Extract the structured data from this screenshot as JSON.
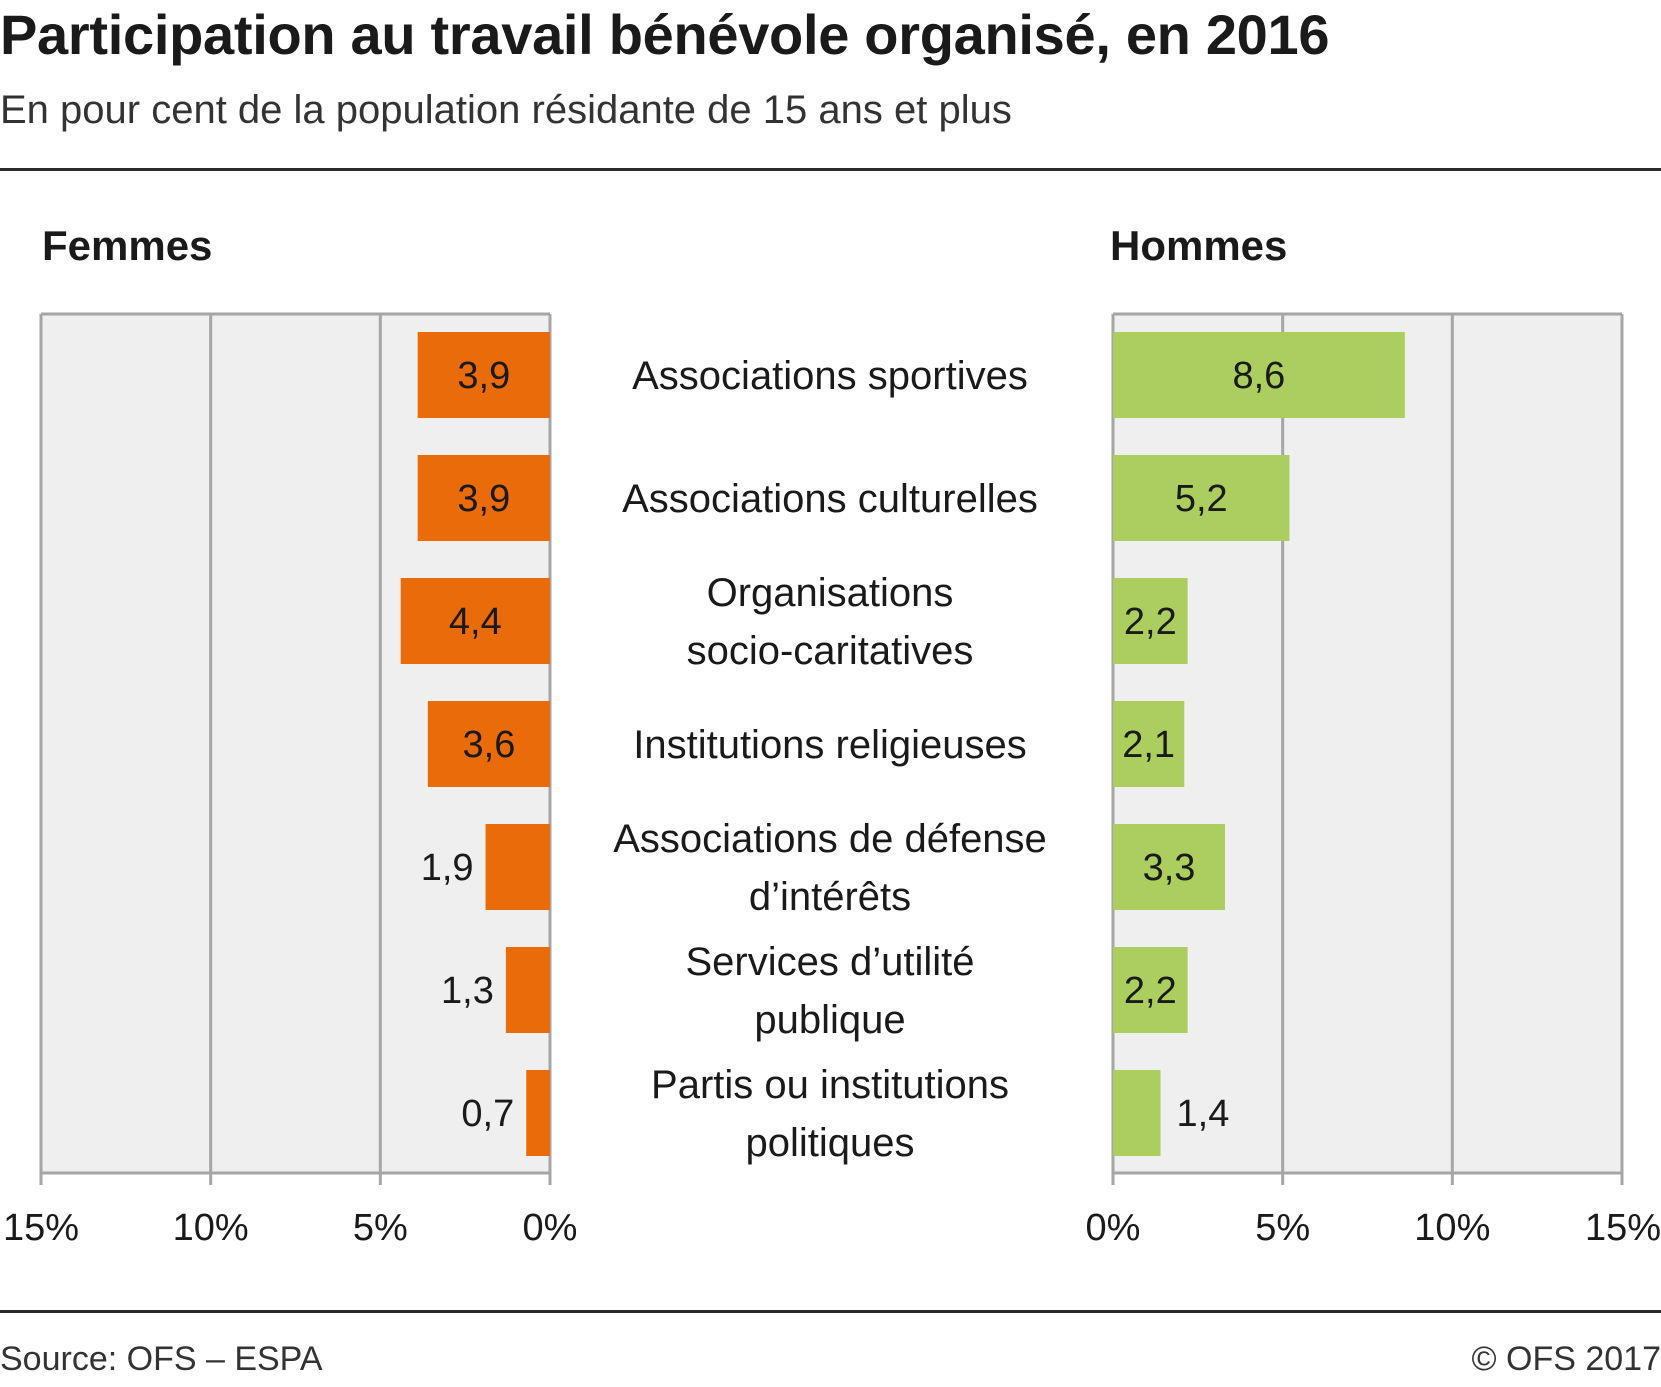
{
  "title": "Participation au travail bénévole organisé, en 2016",
  "subtitle": "En pour cent de la population résidante de 15 ans et plus",
  "source": "Source: OFS – ESPA",
  "copyright": "© OFS 2017",
  "chart_data": {
    "type": "bar",
    "orientation": "horizontal",
    "layout": "butterfly",
    "categories": [
      [
        "Associations sportives"
      ],
      [
        "Associations culturelles"
      ],
      [
        "Organisations",
        "socio-caritatives"
      ],
      [
        "Institutions religieuses"
      ],
      [
        "Associations de défense",
        "d’intérêts"
      ],
      [
        "Services d’utilité",
        "publique"
      ],
      [
        "Partis ou institutions",
        "politiques"
      ]
    ],
    "series": [
      {
        "name": "Femmes",
        "side": "left",
        "color": "#ea6b0a",
        "values": [
          3.9,
          3.9,
          4.4,
          3.6,
          1.9,
          1.3,
          0.7
        ],
        "labels": [
          "3,9",
          "3,9",
          "4,4",
          "3,6",
          "1,9",
          "1,3",
          "0,7"
        ]
      },
      {
        "name": "Hommes",
        "side": "right",
        "color": "#acce5e",
        "values": [
          8.6,
          5.2,
          2.2,
          2.1,
          3.3,
          2.2,
          1.4
        ],
        "labels": [
          "8,6",
          "5,2",
          "2,2",
          "2,1",
          "3,3",
          "2,2",
          "1,4"
        ]
      }
    ],
    "xlim": [
      0,
      15
    ],
    "ticks": [
      0,
      5,
      10,
      15
    ],
    "left_tick_labels": [
      "15%",
      "10%",
      "5%",
      "0%"
    ],
    "right_tick_labels": [
      "0%",
      "5%",
      "10%",
      "15%"
    ],
    "grid": true,
    "plot_background": "#efefef",
    "grid_color": "#a6a6a6"
  }
}
